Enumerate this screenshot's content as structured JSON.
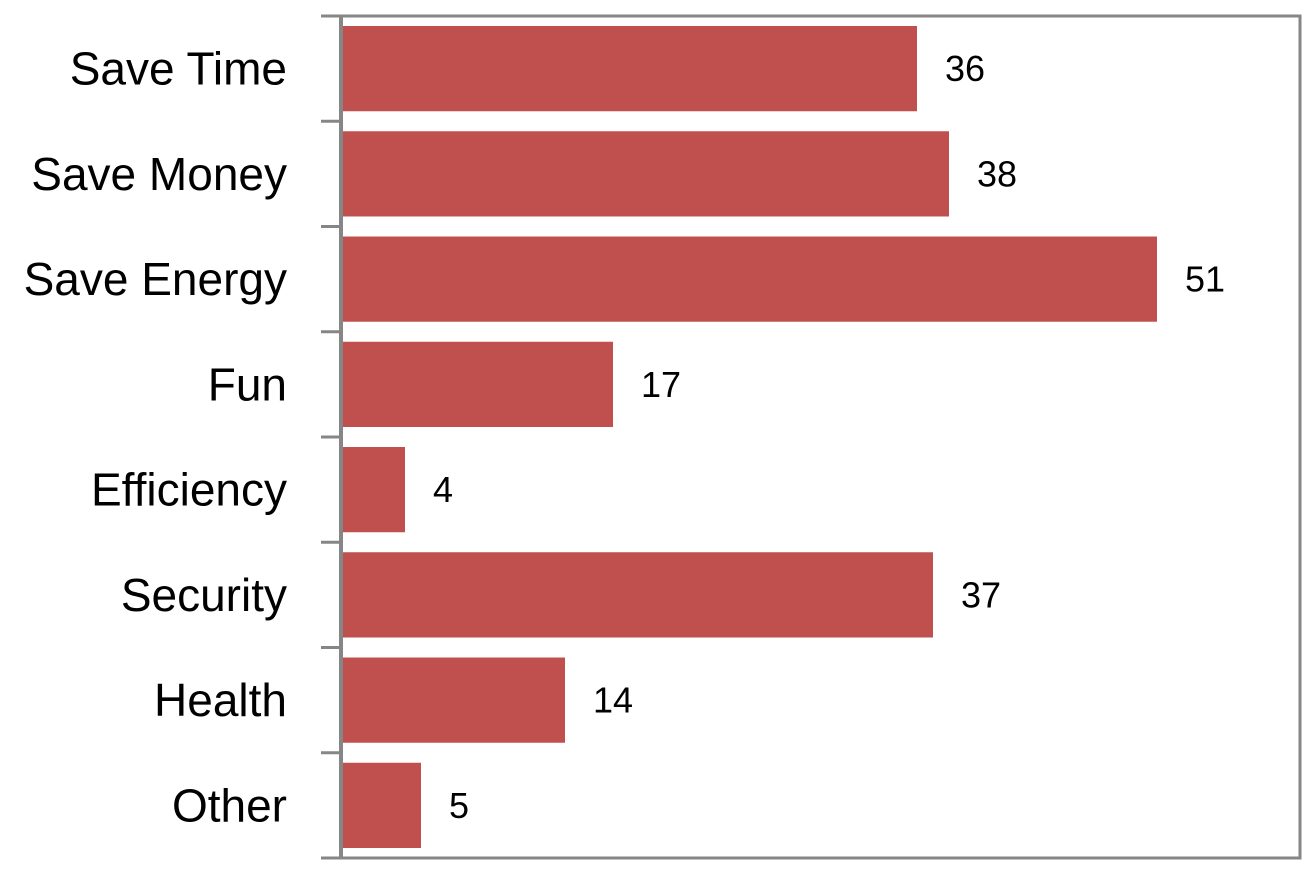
{
  "chart_data": {
    "type": "bar",
    "orientation": "horizontal",
    "categories": [
      "Save Time",
      "Save Money",
      "Save Energy",
      "Fun",
      "Efficiency",
      "Security",
      "Health",
      "Other"
    ],
    "values": [
      36,
      38,
      51,
      17,
      4,
      37,
      14,
      5
    ],
    "xlim": [
      0,
      60
    ],
    "title": "",
    "xlabel": "",
    "ylabel": "",
    "grid": false,
    "legend": "none",
    "data_labels": true,
    "colors": {
      "bar": "#c0504d",
      "axis": "#868686",
      "text": "#000000",
      "background": "#ffffff"
    }
  }
}
